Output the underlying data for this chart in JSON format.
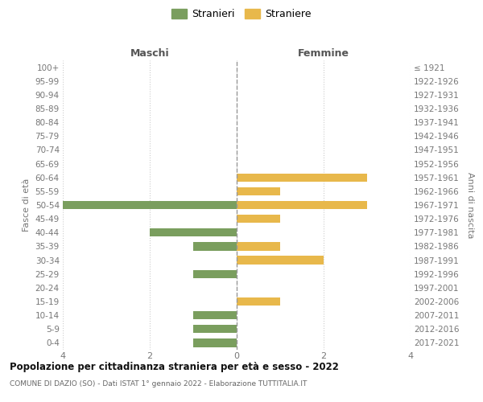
{
  "age_groups": [
    "100+",
    "95-99",
    "90-94",
    "85-89",
    "80-84",
    "75-79",
    "70-74",
    "65-69",
    "60-64",
    "55-59",
    "50-54",
    "45-49",
    "40-44",
    "35-39",
    "30-34",
    "25-29",
    "20-24",
    "15-19",
    "10-14",
    "5-9",
    "0-4"
  ],
  "birth_years": [
    "≤ 1921",
    "1922-1926",
    "1927-1931",
    "1932-1936",
    "1937-1941",
    "1942-1946",
    "1947-1951",
    "1952-1956",
    "1957-1961",
    "1962-1966",
    "1967-1971",
    "1972-1976",
    "1977-1981",
    "1982-1986",
    "1987-1991",
    "1992-1996",
    "1997-2001",
    "2002-2006",
    "2007-2011",
    "2012-2016",
    "2017-2021"
  ],
  "maschi": [
    0,
    0,
    0,
    0,
    0,
    0,
    0,
    0,
    0,
    0,
    4,
    0,
    2,
    1,
    0,
    1,
    0,
    0,
    1,
    1,
    1
  ],
  "femmine": [
    0,
    0,
    0,
    0,
    0,
    0,
    0,
    0,
    3,
    1,
    3,
    1,
    0,
    1,
    2,
    0,
    0,
    1,
    0,
    0,
    0
  ],
  "maschi_color": "#7a9e5e",
  "femmine_color": "#e8b84b",
  "xlim": 4,
  "title": "Popolazione per cittadinanza straniera per età e sesso - 2022",
  "subtitle": "COMUNE DI DAZIO (SO) - Dati ISTAT 1° gennaio 2022 - Elaborazione TUTTITALIA.IT",
  "xlabel_left": "Maschi",
  "xlabel_right": "Femmine",
  "ylabel_left": "Fasce di età",
  "ylabel_right": "Anni di nascita",
  "legend_maschi": "Stranieri",
  "legend_femmine": "Straniere",
  "background_color": "#ffffff",
  "grid_color": "#cccccc"
}
